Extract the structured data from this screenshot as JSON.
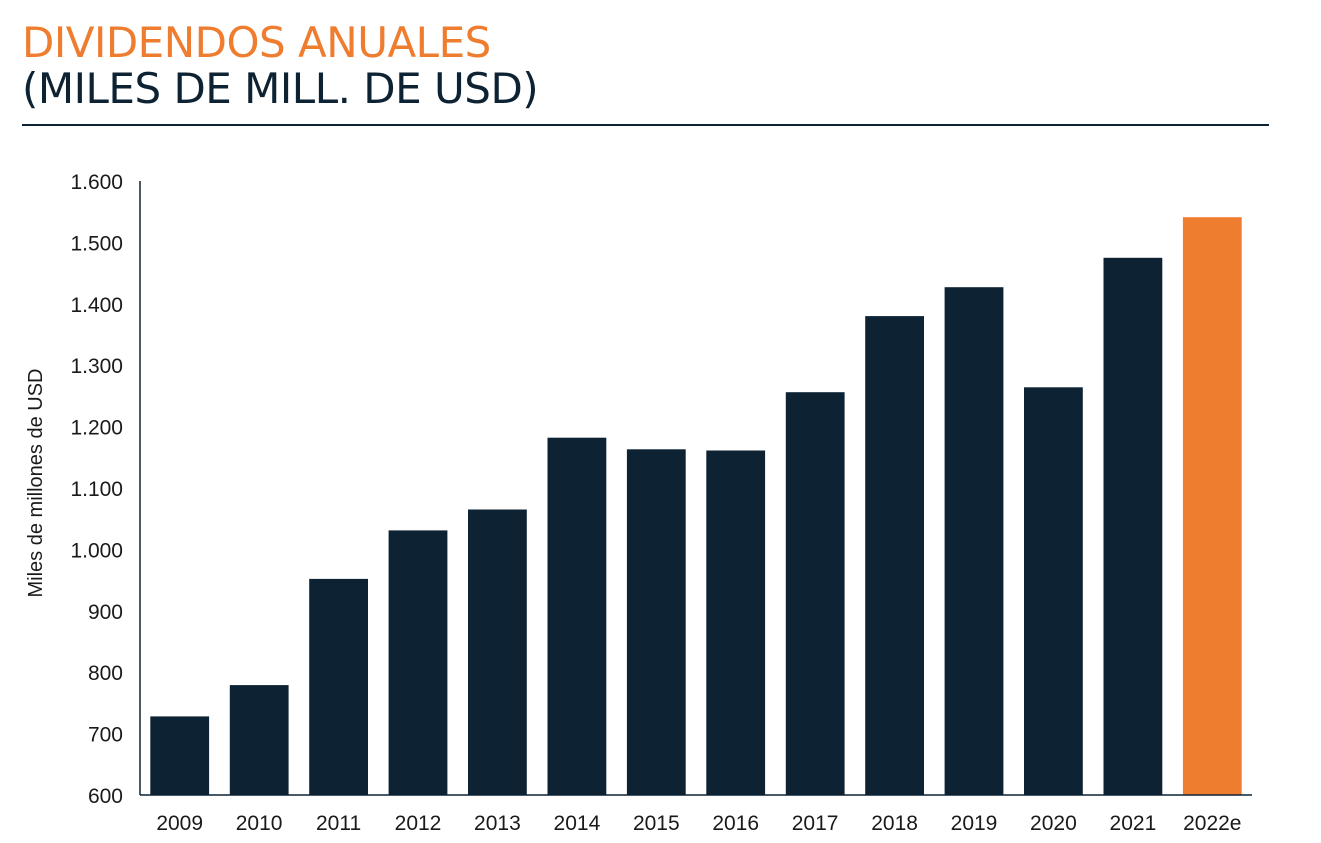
{
  "header": {
    "title": "DIVIDENDOS ANUALES",
    "subtitle": "(MILES DE MILL. DE USD)"
  },
  "colors": {
    "bar": "#0D2233",
    "highlight": "#EE7D30",
    "title": "#EE7D30",
    "text": "#0D2233"
  },
  "chart_data": {
    "type": "bar",
    "title": "",
    "xlabel": "",
    "ylabel": "Miles de millones de USD",
    "categories": [
      "2009",
      "2010",
      "2011",
      "2012",
      "2013",
      "2014",
      "2015",
      "2016",
      "2017",
      "2018",
      "2019",
      "2020",
      "2021",
      "2022e"
    ],
    "values": [
      728,
      779,
      952,
      1031,
      1065,
      1182,
      1163,
      1161,
      1256,
      1380,
      1427,
      1264,
      1475,
      1541
    ],
    "highlight_category": "2022e",
    "ylim": [
      600,
      1600
    ],
    "yticks": [
      600,
      700,
      800,
      900,
      1000,
      1100,
      1200,
      1300,
      1400,
      1500,
      1600
    ],
    "ytick_labels": [
      "600",
      "700",
      "800",
      "900",
      "1.000",
      "1.100",
      "1.200",
      "1.300",
      "1.400",
      "1.500",
      "1.600"
    ],
    "grid": false,
    "legend": "none"
  }
}
